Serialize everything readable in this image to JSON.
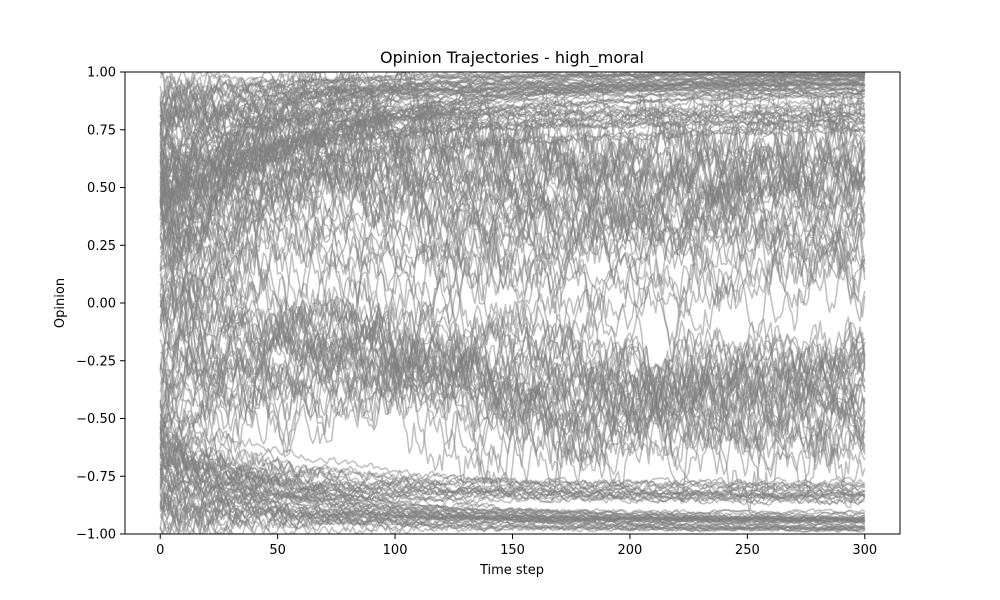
{
  "chart_data": {
    "type": "line",
    "title": "Opinion Trajectories - high_moral",
    "xlabel": "Time step",
    "ylabel": "Opinion",
    "xlim": [
      -15,
      315
    ],
    "ylim": [
      -1.0,
      1.0
    ],
    "x_ticks": [
      0,
      50,
      100,
      150,
      200,
      250,
      300
    ],
    "x_tick_labels": [
      "0",
      "50",
      "100",
      "150",
      "200",
      "250",
      "300"
    ],
    "y_ticks": [
      -1.0,
      -0.75,
      -0.5,
      -0.25,
      0.0,
      0.25,
      0.5,
      0.75,
      1.0
    ],
    "y_tick_labels": [
      "−1.00",
      "−0.75",
      "−0.50",
      "−0.25",
      "0.00",
      "0.25",
      "0.50",
      "0.75",
      "1.00"
    ],
    "line_color": "#808080",
    "line_alpha": 0.5,
    "grid": false,
    "legend": "none",
    "time_steps": 300,
    "series_groups": [
      {
        "kind": "converge_high",
        "start_range": [
          0.2,
          1.0
        ],
        "final_range": [
          0.9,
          1.0
        ],
        "count": 45
      },
      {
        "kind": "converge_low",
        "start_range": [
          -1.0,
          -0.4
        ],
        "final_range": [
          -1.0,
          -0.9
        ],
        "count": 35
      },
      {
        "kind": "stable_high",
        "start_range": [
          0.3,
          0.9
        ],
        "final_range": [
          0.75,
          0.88
        ],
        "count": 18
      },
      {
        "kind": "stable_low",
        "start_range": [
          -0.9,
          -0.5
        ],
        "final_range": [
          -0.88,
          -0.76
        ],
        "count": 18
      },
      {
        "kind": "noisy_upper",
        "center_range": [
          0.45,
          0.75
        ],
        "count": 30
      },
      {
        "kind": "noisy_lower",
        "center_range": [
          -0.5,
          -0.25
        ],
        "count": 35
      },
      {
        "kind": "noisy_mid",
        "center_range": [
          0.05,
          0.4
        ],
        "count": 14
      }
    ]
  }
}
